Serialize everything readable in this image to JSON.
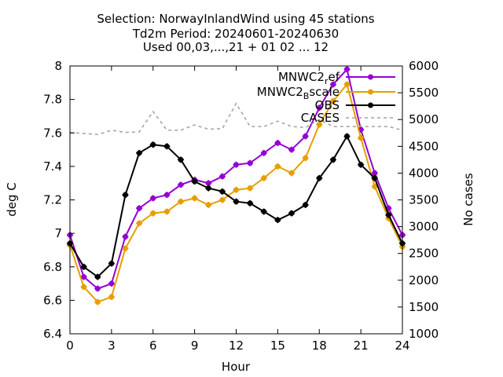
{
  "chart_data": {
    "type": "line",
    "title_lines": [
      "Selection: NorwayInlandWind using    45 stations",
      "Td2m   Period: 20240601-20240630",
      "Used 00,03,...,21 + 01 02 ... 12"
    ],
    "xlabel": "Hour",
    "ylabel": "deg C",
    "y2label": "No cases",
    "xlim": [
      0,
      24
    ],
    "ylim": [
      6.4,
      8.0
    ],
    "y2lim": [
      1000,
      6000
    ],
    "xticks": [
      0,
      3,
      6,
      9,
      12,
      15,
      18,
      21,
      24
    ],
    "yticks": [
      6.4,
      6.6,
      6.8,
      7.0,
      7.2,
      7.4,
      7.6,
      7.8,
      8.0
    ],
    "ytick_labels": [
      "6.4",
      "6.6",
      "6.8",
      "7",
      "7.2",
      "7.4",
      "7.6",
      "7.8",
      "8"
    ],
    "y2ticks": [
      1000,
      1500,
      2000,
      2500,
      3000,
      3500,
      4000,
      4500,
      5000,
      5500,
      6000
    ],
    "legend_position": "top-right",
    "legend": [
      {
        "label_main": "MNWC2",
        "label_sub": "r",
        "label_tail": "ef",
        "color": "#9400d3",
        "style": "line-points"
      },
      {
        "label_main": "MNWC2",
        "label_sub": "B",
        "label_tail": "scale",
        "color": "#e69f00",
        "style": "line-points"
      },
      {
        "label_main": "OBS",
        "label_sub": "",
        "label_tail": "",
        "color": "#000000",
        "style": "line-points"
      },
      {
        "label_main": "CASES",
        "label_sub": "",
        "label_tail": "",
        "color": "#a0a0a0",
        "style": "dashed"
      }
    ],
    "series": [
      {
        "key": "ref",
        "axis": "y",
        "color": "#9400d3",
        "x": [
          0,
          1,
          2,
          3,
          4,
          5,
          6,
          7,
          8,
          9,
          10,
          11,
          12,
          13,
          14,
          15,
          16,
          17,
          18,
          19,
          20,
          21,
          22,
          23,
          24
        ],
        "values": [
          6.99,
          6.74,
          6.67,
          6.7,
          6.98,
          7.15,
          7.21,
          7.23,
          7.29,
          7.32,
          7.3,
          7.34,
          7.41,
          7.42,
          7.48,
          7.54,
          7.5,
          7.58,
          7.75,
          7.89,
          7.98,
          7.62,
          7.36,
          7.15,
          6.99
        ]
      },
      {
        "key": "bscale",
        "axis": "y",
        "color": "#e69f00",
        "x": [
          0,
          1,
          2,
          3,
          4,
          5,
          6,
          7,
          8,
          9,
          10,
          11,
          12,
          13,
          14,
          15,
          16,
          17,
          18,
          19,
          20,
          21,
          22,
          23,
          24
        ],
        "values": [
          6.93,
          6.68,
          6.59,
          6.62,
          6.91,
          7.06,
          7.12,
          7.13,
          7.19,
          7.21,
          7.17,
          7.2,
          7.26,
          7.27,
          7.33,
          7.4,
          7.36,
          7.45,
          7.65,
          7.79,
          7.89,
          7.57,
          7.28,
          7.09,
          6.92
        ]
      },
      {
        "key": "obs",
        "axis": "y",
        "color": "#000000",
        "x": [
          0,
          1,
          2,
          3,
          4,
          5,
          6,
          7,
          8,
          9,
          10,
          11,
          12,
          13,
          14,
          15,
          16,
          17,
          18,
          19,
          20,
          21,
          22,
          23,
          24
        ],
        "values": [
          6.94,
          6.8,
          6.74,
          6.82,
          7.23,
          7.48,
          7.53,
          7.52,
          7.44,
          7.31,
          7.27,
          7.25,
          7.19,
          7.18,
          7.13,
          7.08,
          7.12,
          7.17,
          7.33,
          7.44,
          7.58,
          7.41,
          7.33,
          7.11,
          6.94
        ]
      },
      {
        "key": "cases",
        "axis": "y2",
        "color": "#a0a0a0",
        "x": [
          0,
          1,
          2,
          3,
          4,
          5,
          6,
          7,
          8,
          9,
          10,
          11,
          12,
          13,
          14,
          15,
          16,
          17,
          18,
          19,
          20,
          21,
          22,
          23,
          24
        ],
        "values": [
          4760,
          4740,
          4720,
          4800,
          4760,
          4770,
          5150,
          4800,
          4800,
          4900,
          4820,
          4830,
          5300,
          4870,
          4870,
          4970,
          4870,
          4850,
          5000,
          4870,
          4870,
          4870,
          4870,
          4870,
          4800
        ]
      }
    ]
  }
}
